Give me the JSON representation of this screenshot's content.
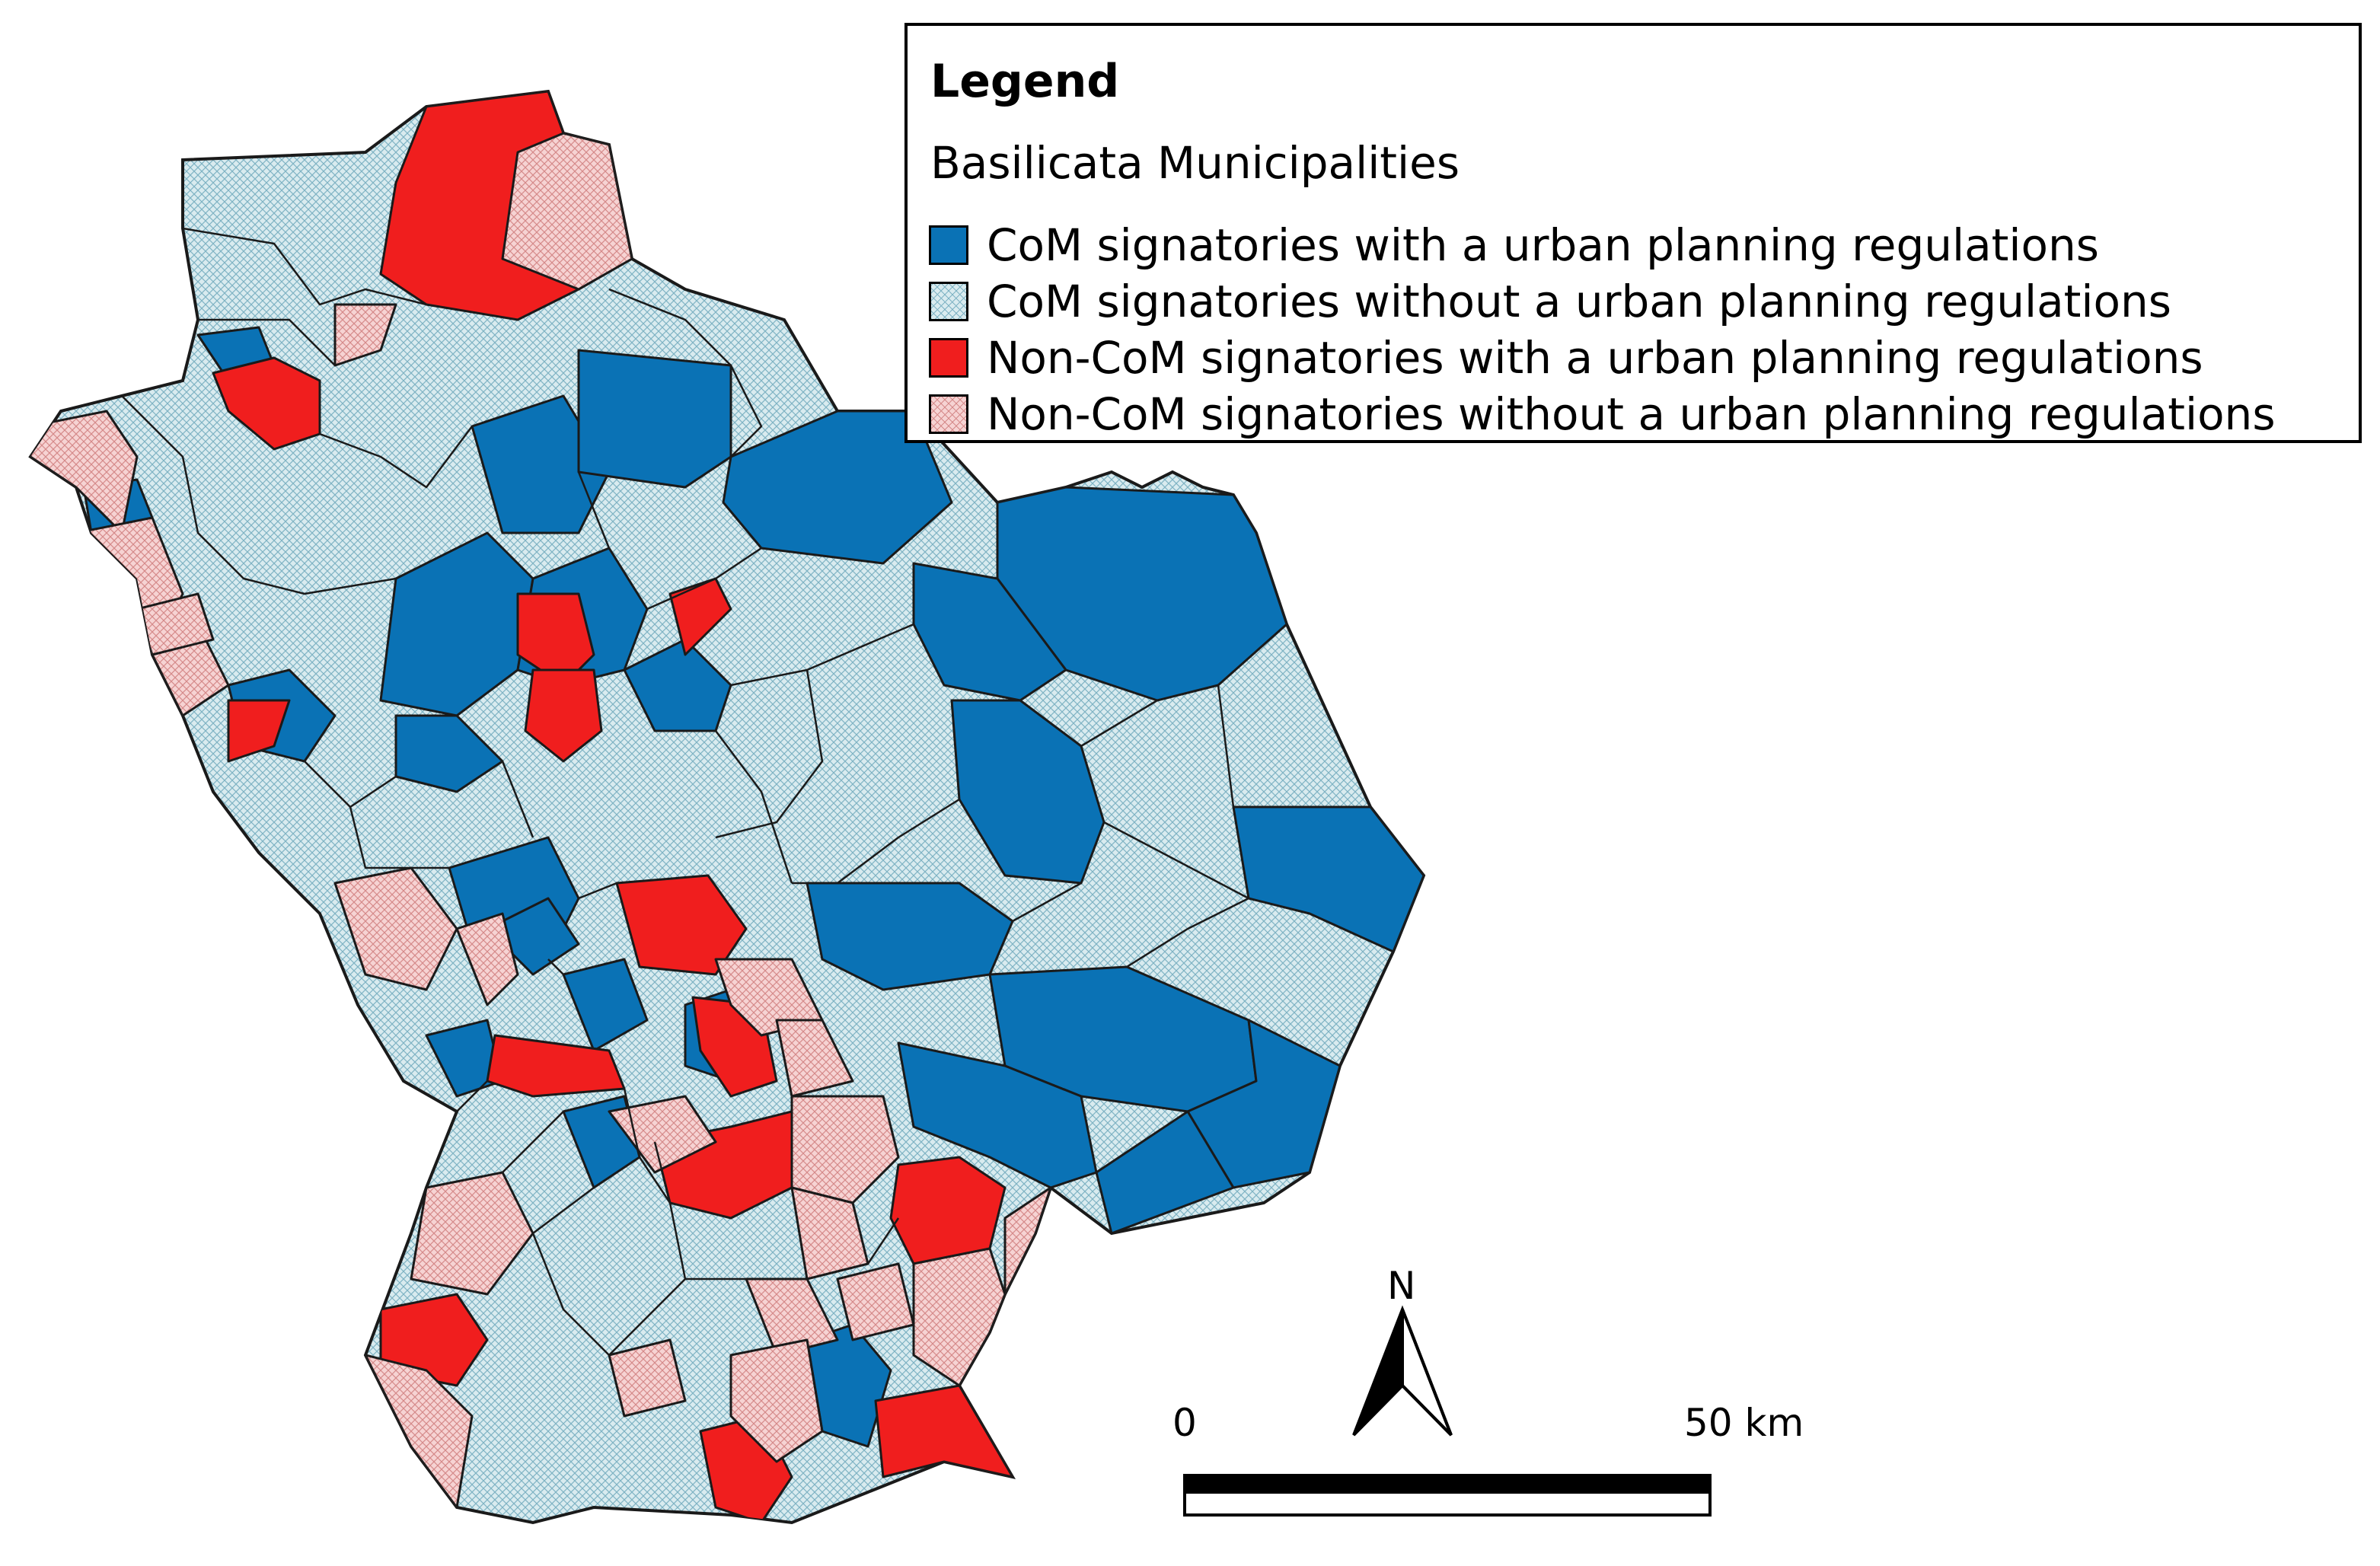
{
  "legend": {
    "title": "Legend",
    "layer": "Basilicata Municipalities",
    "items": [
      {
        "label": "CoM signatories with a urban planning regulations",
        "color": "#0a72b5",
        "pattern": "solid"
      },
      {
        "label": "CoM signatories without a urban planning regulations",
        "color": "#d9ebef",
        "pattern": "cross-hatch"
      },
      {
        "label": "Non-CoM signatories with a urban planning regulations",
        "color": "#f01e1e",
        "pattern": "solid"
      },
      {
        "label": "Non-CoM signatories without a urban planning regulations",
        "color": "#f6d3d3",
        "pattern": "cross-hatch"
      }
    ]
  },
  "north_arrow": {
    "label": "N"
  },
  "scale_bar": {
    "start_label": "0",
    "end_label": "50 km"
  },
  "colors": {
    "com_with": "#0a72b5",
    "com_without": "#d9ebef",
    "noncom_with": "#f01e1e",
    "noncom_without": "#f6d3d3",
    "border": "#1a1a1a"
  }
}
